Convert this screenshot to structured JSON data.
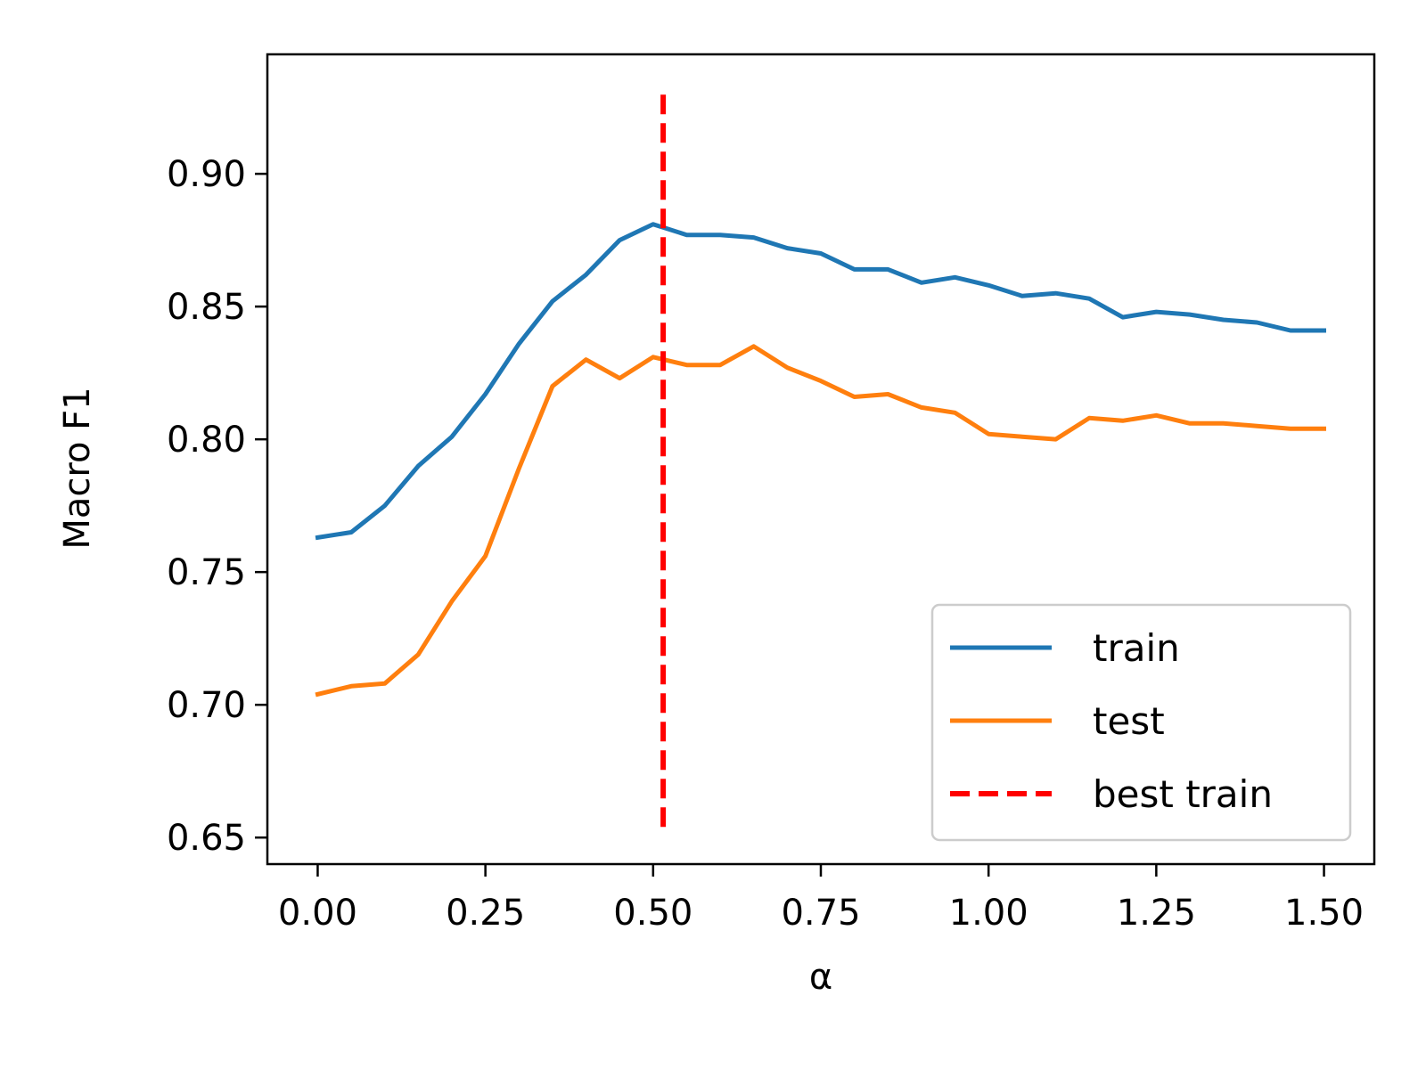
{
  "colors": {
    "train": "#1f77b4",
    "test": "#ff7f0e",
    "best_train": "#ff0000",
    "axis": "#000000",
    "legend_border": "#cccccc"
  },
  "chart_data": {
    "type": "line",
    "xlabel": "α",
    "ylabel": "Macro F1",
    "xlim": [
      -0.075,
      1.575
    ],
    "ylim": [
      0.64,
      0.945
    ],
    "x_ticks": [
      0.0,
      0.25,
      0.5,
      0.75,
      1.0,
      1.25,
      1.5
    ],
    "x_tick_labels": [
      "0.00",
      "0.25",
      "0.50",
      "0.75",
      "1.00",
      "1.25",
      "1.50"
    ],
    "y_ticks": [
      0.65,
      0.7,
      0.75,
      0.8,
      0.85,
      0.9
    ],
    "y_tick_labels": [
      "0.65",
      "0.70",
      "0.75",
      "0.80",
      "0.85",
      "0.90"
    ],
    "grid": false,
    "legend_position": "lower-right",
    "x": [
      0.0,
      0.05,
      0.1,
      0.15,
      0.2,
      0.25,
      0.3,
      0.35,
      0.4,
      0.45,
      0.5,
      0.55,
      0.6,
      0.65,
      0.7,
      0.75,
      0.8,
      0.85,
      0.9,
      0.95,
      1.0,
      1.05,
      1.1,
      1.15,
      1.2,
      1.25,
      1.3,
      1.35,
      1.4,
      1.45,
      1.5
    ],
    "series": [
      {
        "name": "train",
        "color": "#1f77b4",
        "style": "solid",
        "values": [
          0.763,
          0.765,
          0.775,
          0.79,
          0.801,
          0.817,
          0.836,
          0.852,
          0.862,
          0.875,
          0.881,
          0.877,
          0.877,
          0.876,
          0.872,
          0.87,
          0.864,
          0.864,
          0.859,
          0.861,
          0.858,
          0.854,
          0.855,
          0.853,
          0.846,
          0.848,
          0.847,
          0.845,
          0.844,
          0.841,
          0.841
        ]
      },
      {
        "name": "test",
        "color": "#ff7f0e",
        "style": "solid",
        "values": [
          0.704,
          0.707,
          0.708,
          0.719,
          0.739,
          0.756,
          0.789,
          0.82,
          0.83,
          0.823,
          0.831,
          0.828,
          0.828,
          0.835,
          0.827,
          0.822,
          0.816,
          0.817,
          0.812,
          0.81,
          0.802,
          0.801,
          0.8,
          0.808,
          0.807,
          0.809,
          0.806,
          0.806,
          0.805,
          0.804,
          0.804
        ]
      }
    ],
    "vlines": [
      {
        "name": "best train",
        "x": 0.515,
        "ymin": 0.654,
        "ymax": 0.93,
        "color": "#ff0000",
        "style": "dashed"
      }
    ],
    "legend": [
      "train",
      "test",
      "best train"
    ]
  }
}
